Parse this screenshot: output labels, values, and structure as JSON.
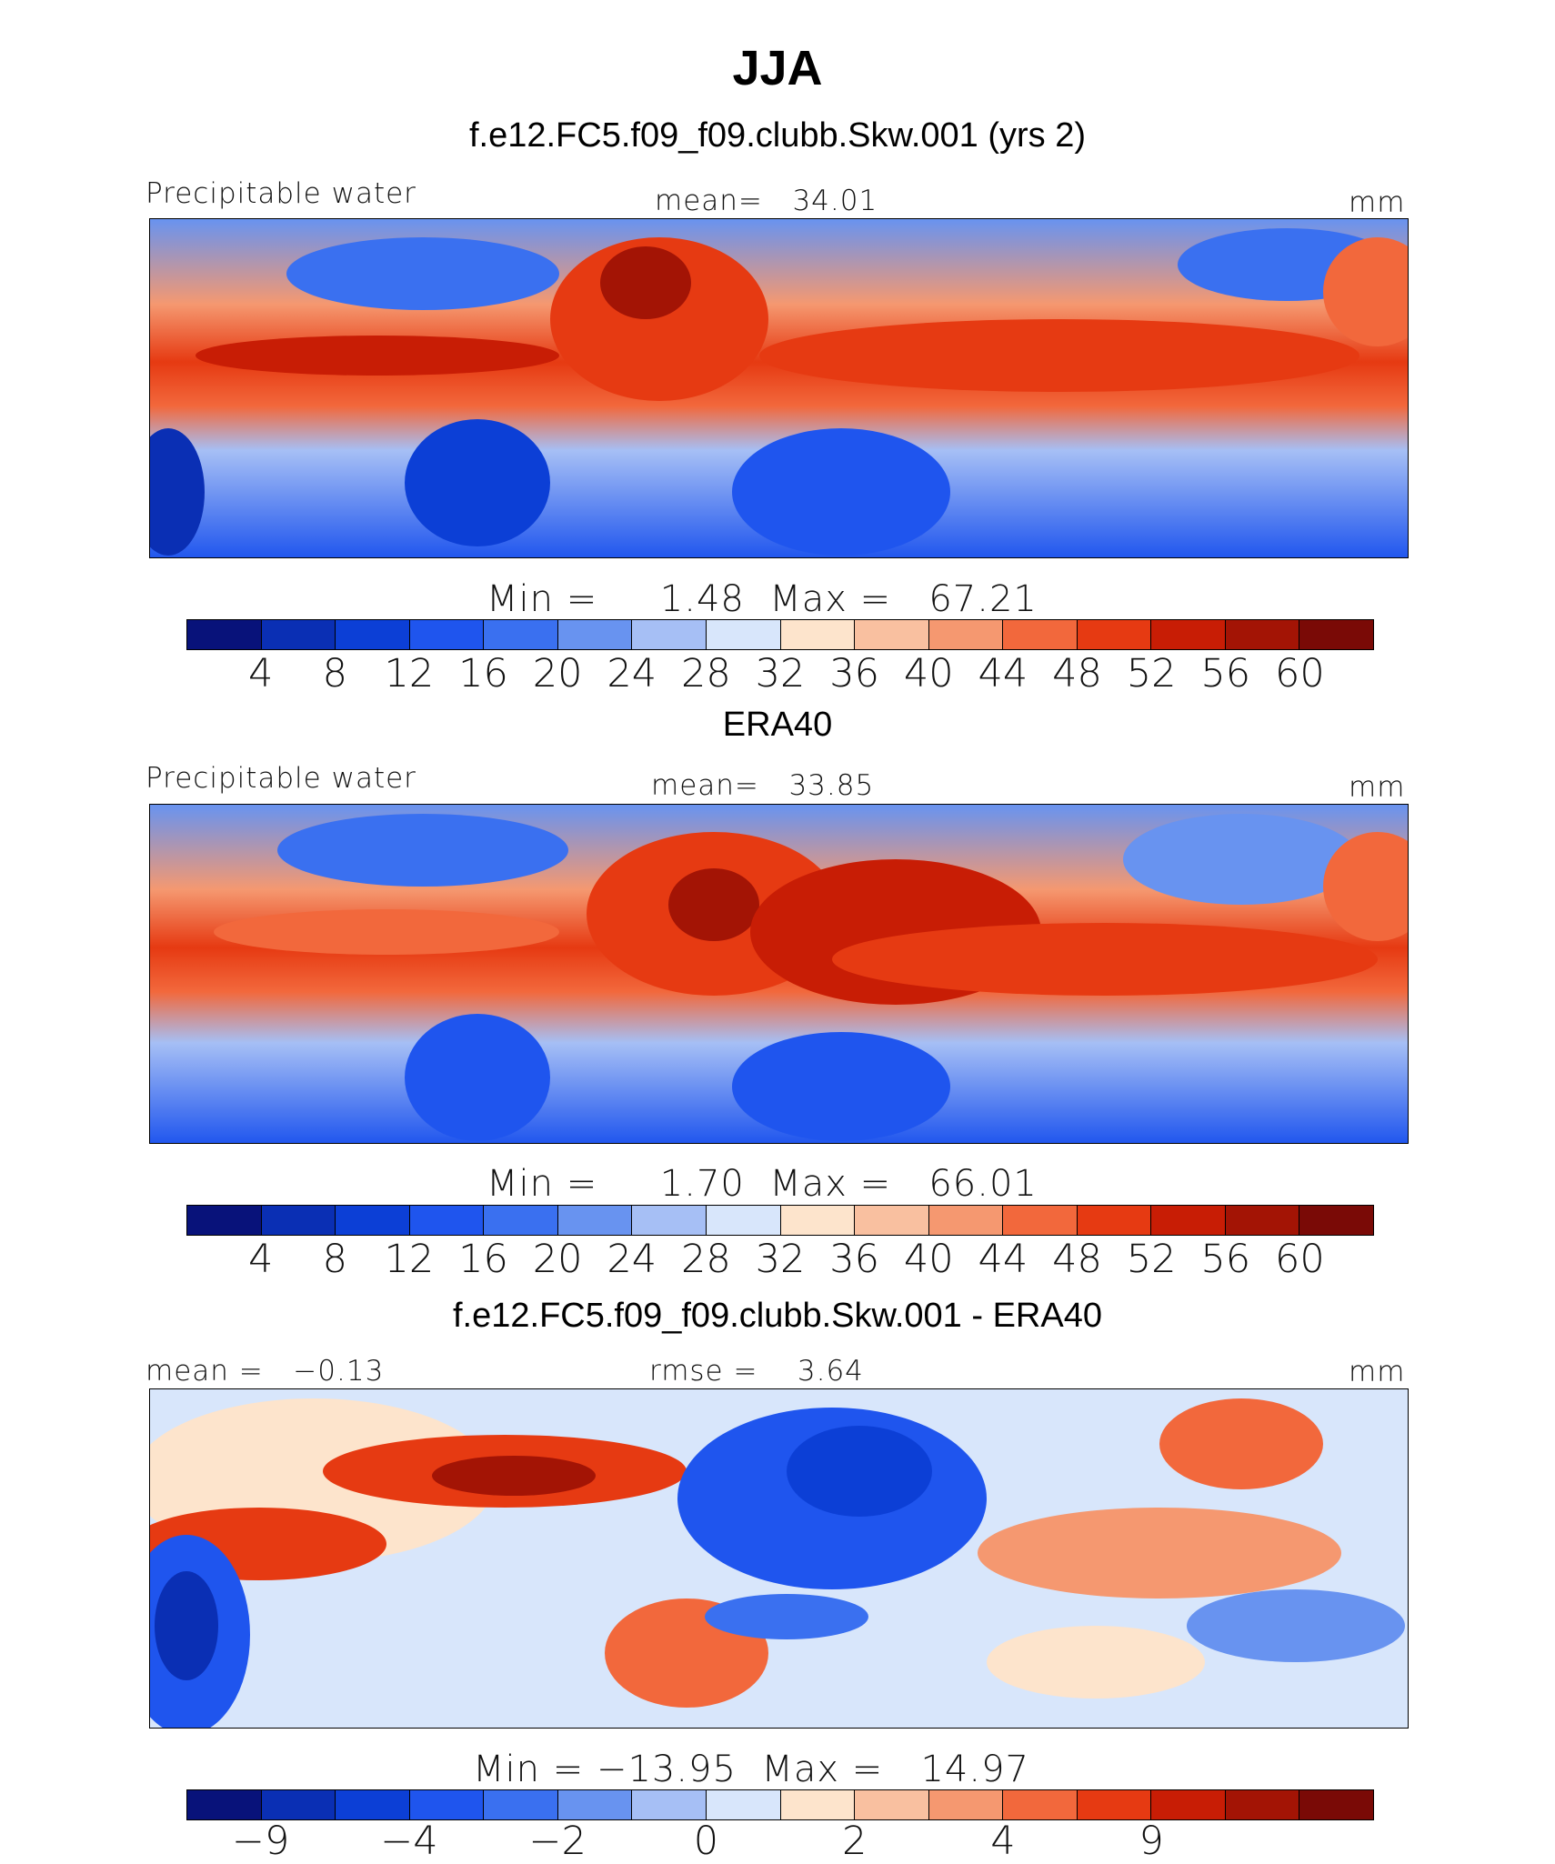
{
  "figure": {
    "title": "JJA"
  },
  "chart_data": [
    {
      "type": "heatmap",
      "title": "f.e12.FC5.f09_f09.clubb.Skw.001 (yrs 2)",
      "left_label": "Precipitable water",
      "center_label": "mean=   34.01",
      "units": "mm",
      "minmax": "Min =     1.48  Max =   67.21",
      "levels": [
        "4",
        "8",
        "12",
        "16",
        "20",
        "24",
        "28",
        "32",
        "36",
        "40",
        "44",
        "48",
        "52",
        "56",
        "60"
      ]
    },
    {
      "type": "heatmap",
      "title": "ERA40",
      "left_label": "Precipitable water",
      "center_label": "mean=   33.85",
      "units": "mm",
      "minmax": "Min =     1.70  Max =   66.01",
      "levels": [
        "4",
        "8",
        "12",
        "16",
        "20",
        "24",
        "28",
        "32",
        "36",
        "40",
        "44",
        "48",
        "52",
        "56",
        "60"
      ]
    },
    {
      "type": "heatmap",
      "title": "f.e12.FC5.f09_f09.clubb.Skw.001 - ERA40",
      "left_label": "mean =   −0.13",
      "center_label": "rmse =    3.64",
      "units": "mm",
      "minmax": "Min = −13.95  Max =   14.97",
      "levels": [
        "−9",
        "",
        "−4",
        "",
        "−2",
        "",
        "0",
        "",
        "2",
        "",
        "4",
        "",
        "9",
        "",
        ""
      ],
      "tick_labels": [
        "−9",
        "−4",
        "−2",
        "0",
        "2",
        "4",
        "9"
      ]
    }
  ],
  "palette": [
    "#08127a",
    "#0a2fb4",
    "#0c3fd6",
    "#1f55ee",
    "#3a70f0",
    "#6893f0",
    "#a6bff5",
    "#d8e6fb",
    "#fde4cc",
    "#f9c0a0",
    "#f59870",
    "#f2683c",
    "#e63a12",
    "#c81d05",
    "#a31405",
    "#7a0a06"
  ]
}
